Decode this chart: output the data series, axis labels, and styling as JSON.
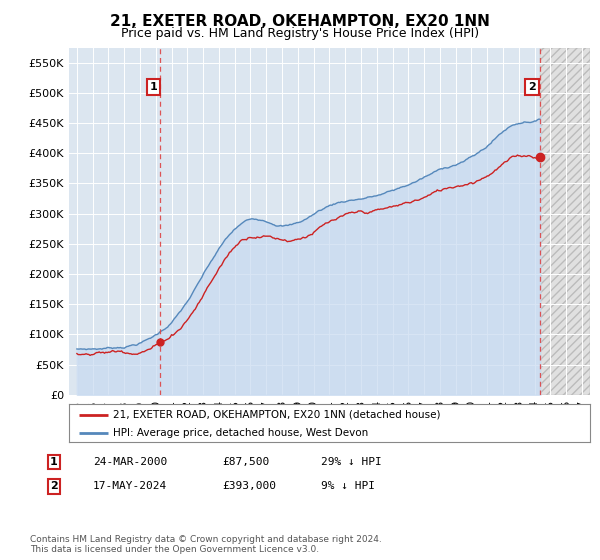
{
  "title": "21, EXETER ROAD, OKEHAMPTON, EX20 1NN",
  "subtitle": "Price paid vs. HM Land Registry's House Price Index (HPI)",
  "ylim": [
    0,
    575000
  ],
  "yticks": [
    0,
    50000,
    100000,
    150000,
    200000,
    250000,
    300000,
    350000,
    400000,
    450000,
    500000,
    550000
  ],
  "ytick_labels": [
    "£0",
    "£50K",
    "£100K",
    "£150K",
    "£200K",
    "£250K",
    "£300K",
    "£350K",
    "£400K",
    "£450K",
    "£500K",
    "£550K"
  ],
  "background_color": "#ffffff",
  "plot_background": "#dce6f0",
  "hatch_background": "#e8e8e8",
  "grid_color": "#ffffff",
  "hpi_color": "#5588bb",
  "hpi_fill_color": "#c8daf0",
  "price_color": "#cc2222",
  "vline_color": "#dd4444",
  "point1_year": 2000.22,
  "point1_value": 87500,
  "point2_year": 2024.37,
  "point2_value": 393000,
  "legend_label1": "21, EXETER ROAD, OKEHAMPTON, EX20 1NN (detached house)",
  "legend_label2": "HPI: Average price, detached house, West Devon",
  "table_row1": [
    "1",
    "24-MAR-2000",
    "£87,500",
    "29% ↓ HPI"
  ],
  "table_row2": [
    "2",
    "17-MAY-2024",
    "£393,000",
    "9% ↓ HPI"
  ],
  "footnote": "Contains HM Land Registry data © Crown copyright and database right 2024.\nThis data is licensed under the Open Government Licence v3.0.",
  "title_fontsize": 11,
  "subtitle_fontsize": 9,
  "tick_fontsize": 8
}
